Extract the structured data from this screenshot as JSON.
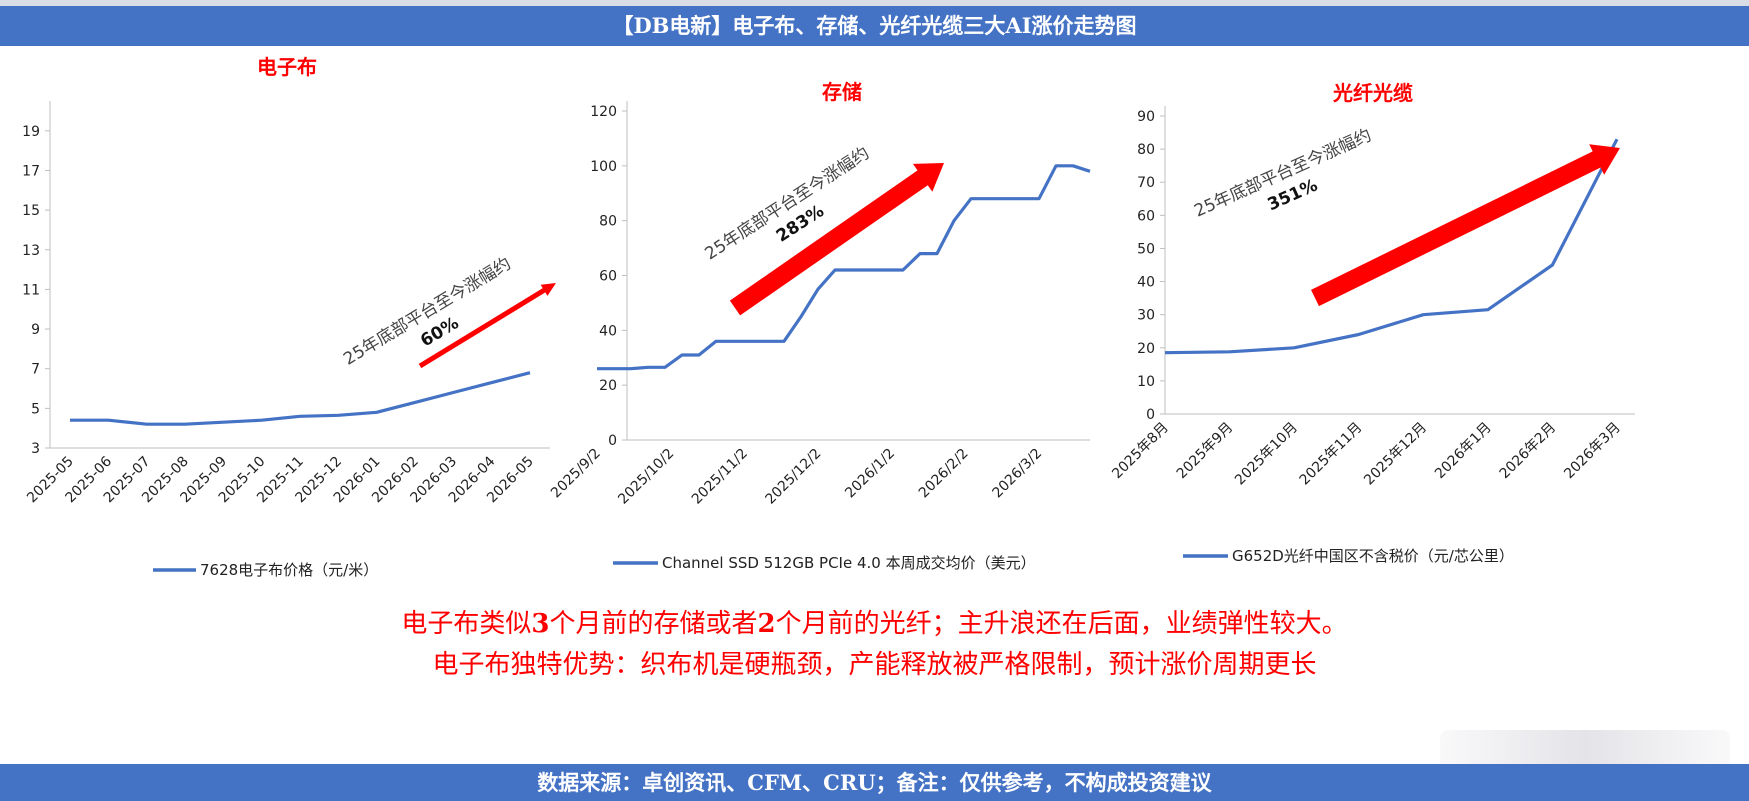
{
  "header": {
    "title": "【DB电新】电子布、存储、光纤光缆三大AI涨价走势图"
  },
  "footer": {
    "text": "数据来源：卓创资讯、CFM、CRU；备注：仅供参考，不构成投资建议"
  },
  "notes": {
    "line1": {
      "a": "电子布类似",
      "b": "3",
      "c": "个月前的存储或者",
      "d": "2",
      "e": "个月前的光纤；主升浪还在后面，业绩弹性较大。"
    },
    "line2": "电子布独特优势：织布机是硬瓶颈，产能释放被严格限制，预计涨价周期更长"
  },
  "colors": {
    "line": "#4472c4",
    "arrow": "#ff0000",
    "title": "#ff0000",
    "banner": "#4472c4"
  },
  "chart_data": [
    {
      "type": "line",
      "title": "电子布",
      "x": [
        "2025-05",
        "2025-06",
        "2025-07",
        "2025-08",
        "2025-09",
        "2025-10",
        "2025-11",
        "2025-12",
        "2026-01",
        "2026-02",
        "2026-03",
        "2026-04",
        "2026-05"
      ],
      "series": [
        {
          "name": "7628电子布价格（元/米）",
          "values": [
            4.4,
            4.4,
            4.2,
            4.2,
            4.3,
            4.4,
            4.6,
            4.65,
            4.8,
            5.3,
            5.8,
            6.3,
            6.8
          ]
        }
      ],
      "ylim": [
        3,
        20
      ],
      "yticks": [
        3,
        5,
        7,
        9,
        11,
        13,
        15,
        17,
        19
      ],
      "annotation": {
        "text": "25年底部平台至今涨幅约",
        "value": "60%"
      },
      "grid": false,
      "legend": "bottom"
    },
    {
      "type": "line",
      "title": "存储",
      "x": [
        "2025/9/2",
        "2025/9/9",
        "2025/9/16",
        "2025/9/23",
        "2025/9/30",
        "2025/10/7",
        "2025/10/14",
        "2025/10/21",
        "2025/10/28",
        "2025/11/4",
        "2025/11/11",
        "2025/11/18",
        "2025/11/25",
        "2025/12/2",
        "2025/12/9",
        "2025/12/16",
        "2025/12/23",
        "2025/12/30",
        "2026/1/6",
        "2026/1/13",
        "2026/1/20",
        "2026/1/27",
        "2026/2/3",
        "2026/2/10",
        "2026/2/17",
        "2026/2/24",
        "2026/3/3",
        "2026/3/10",
        "2026/3/17",
        "2026/3/24"
      ],
      "xticks": [
        "2025/9/2",
        "2025/10/2",
        "2025/11/2",
        "2025/12/2",
        "2026/1/2",
        "2026/2/2",
        "2026/3/2"
      ],
      "series": [
        {
          "name": "Channel SSD 512GB PCIe 4.0 本周成交均价（美元）",
          "values": [
            26,
            26,
            26,
            26.5,
            26.5,
            31,
            31,
            36,
            36,
            36,
            36,
            36,
            45,
            55,
            62,
            62,
            62,
            62,
            62,
            68,
            68,
            80,
            88,
            88,
            88,
            88,
            88,
            100,
            100,
            98
          ]
        }
      ],
      "ylim": [
        0,
        120
      ],
      "yticks": [
        0,
        20,
        40,
        60,
        80,
        100,
        120
      ],
      "annotation": {
        "text": "25年底部平台至今涨幅约",
        "value": "283%"
      },
      "grid": false,
      "legend": "bottom"
    },
    {
      "type": "line",
      "title": "光纤光缆",
      "x": [
        "2025年8月",
        "2025年9月",
        "2025年10月",
        "2025年11月",
        "2025年12月",
        "2026年1月",
        "2026年2月",
        "2026年3月"
      ],
      "series": [
        {
          "name": "G652D光纤中国区不含税价（元/芯公里）",
          "values": [
            18.5,
            18.8,
            20,
            24,
            30,
            31.5,
            45,
            83
          ]
        }
      ],
      "ylim": [
        0,
        90
      ],
      "yticks": [
        0,
        10,
        20,
        30,
        40,
        50,
        60,
        70,
        80,
        90
      ],
      "annotation": {
        "text": "25年底部平台至今涨幅约",
        "value": "351%"
      },
      "grid": false,
      "legend": "bottom"
    }
  ]
}
